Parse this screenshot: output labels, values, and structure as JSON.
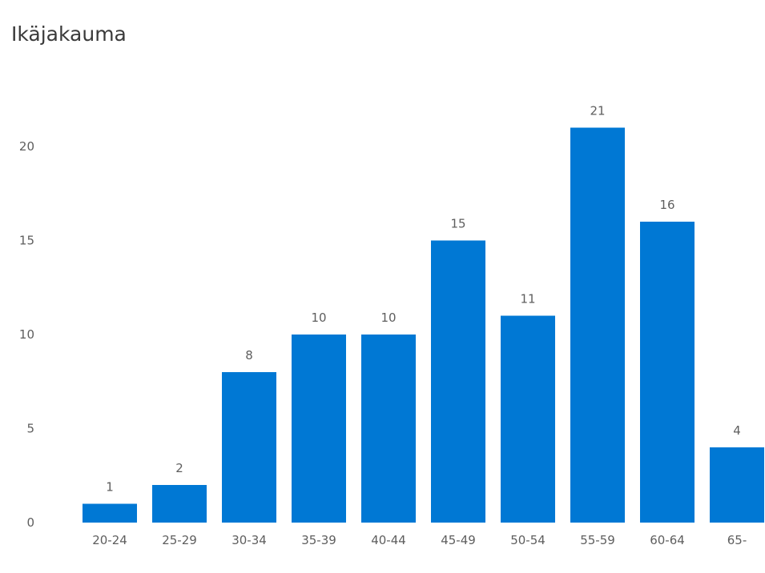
{
  "chart_data": {
    "type": "bar",
    "title": "Ikäjakauma",
    "xlabel": "",
    "ylabel": "",
    "categories": [
      "20-24",
      "25-29",
      "30-34",
      "35-39",
      "40-44",
      "45-49",
      "50-54",
      "55-59",
      "60-64",
      "65-"
    ],
    "values": [
      1,
      2,
      8,
      10,
      10,
      15,
      11,
      21,
      16,
      4
    ],
    "ylim": [
      0,
      21
    ],
    "yticks": [
      0,
      5,
      10,
      15,
      20
    ],
    "grid": false,
    "bar_color": "#0078d4",
    "data_labels": true
  }
}
